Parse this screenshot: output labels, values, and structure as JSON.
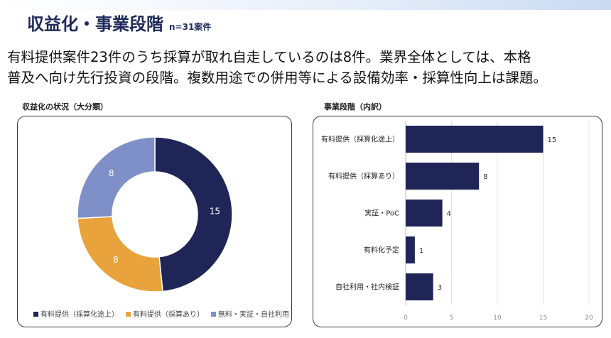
{
  "header": {
    "title": "収益化・事業段階",
    "subtitle": "n=31案件"
  },
  "lead": {
    "line1": "有料提供案件23件のうち採算が取れ自走しているのは8件。業界全体としては、本格",
    "line2": "普及へ向け先行投資の段階。複数用途での併用等による設備効率・採算性向上は課題。"
  },
  "left_panel": {
    "title": "収益化の状況（大分類）"
  },
  "right_panel": {
    "title": "事業段階（内訳）"
  },
  "colors": {
    "navy": "#1f2557",
    "orange": "#e9a33c",
    "lavender": "#7f8fc8",
    "title_navy": "#1f2a5a",
    "axis_text": "#8a8a8a",
    "grid": "#e3e3e3"
  },
  "chart_data": [
    {
      "type": "pie",
      "variant": "donut",
      "title": "収益化の状況（大分類）",
      "series": [
        {
          "name": "有料提供（採算化途上）",
          "value": 15,
          "color": "#1f2557"
        },
        {
          "name": "有料提供（採算あり）",
          "value": 8,
          "color": "#e9a33c"
        },
        {
          "name": "無料・実証・自社利用",
          "value": 8,
          "color": "#7f8fc8"
        }
      ],
      "legend": "bottom"
    },
    {
      "type": "bar",
      "orientation": "horizontal",
      "title": "事業段階（内訳）",
      "categories": [
        "有料提供（採算化途上）",
        "有料提供（採算あり）",
        "実証・PoC",
        "有料化予定",
        "自社利用・社内検証"
      ],
      "values": [
        15,
        8,
        4,
        1,
        3
      ],
      "color": "#1f2557",
      "xlim": [
        0,
        20
      ],
      "xticks": [
        0,
        5,
        10,
        15,
        20
      ],
      "grid": true,
      "data_labels": true
    }
  ]
}
